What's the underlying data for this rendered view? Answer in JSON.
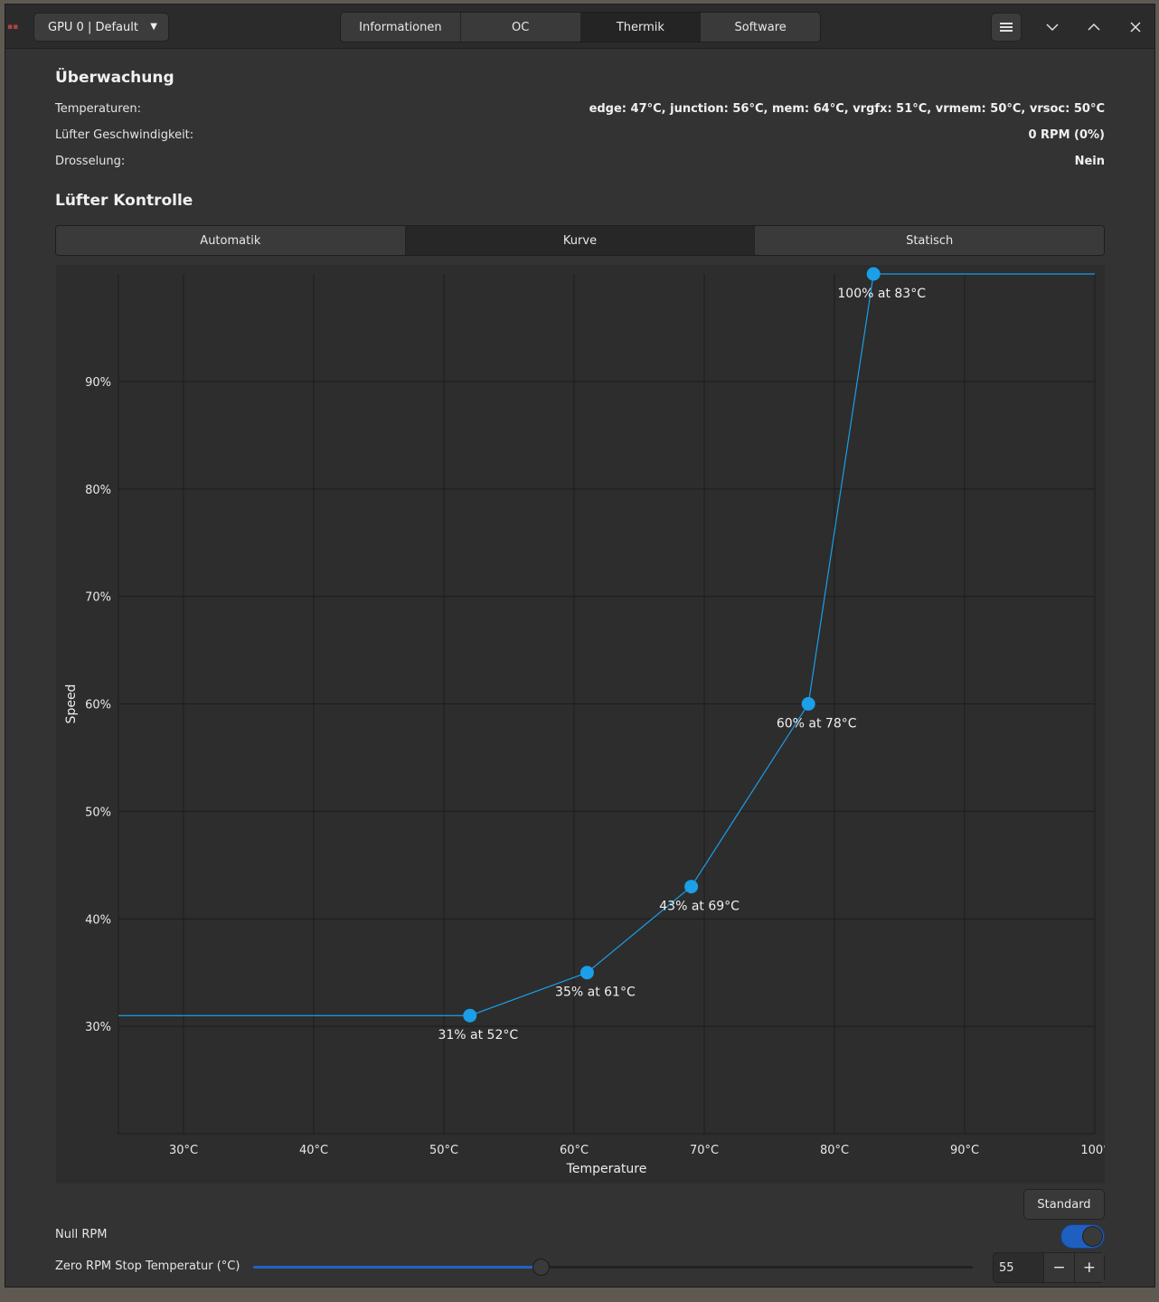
{
  "header": {
    "gpu_selector": "GPU 0 | Default",
    "tabs": [
      {
        "label": "Informationen",
        "active": false
      },
      {
        "label": "OC",
        "active": false
      },
      {
        "label": "Thermik",
        "active": true
      },
      {
        "label": "Software",
        "active": false
      }
    ],
    "icons": {
      "menu": "hamburger-icon",
      "minimize": "chevron-down-icon",
      "maximize": "chevron-up-icon",
      "close": "close-icon"
    }
  },
  "monitoring": {
    "title": "Überwachung",
    "rows": [
      {
        "label": "Temperaturen:",
        "value": "edge: 47°C, junction: 56°C, mem: 64°C, vrgfx: 51°C, vrmem: 50°C, vrsoc: 50°C"
      },
      {
        "label": "Lüfter Geschwindigkeit:",
        "value": "0 RPM (0%)"
      },
      {
        "label": "Drosselung:",
        "value": "Nein"
      }
    ]
  },
  "fan_control": {
    "title": "Lüfter Kontrolle",
    "modes": [
      {
        "label": "Automatik",
        "active": false
      },
      {
        "label": "Kurve",
        "active": true
      },
      {
        "label": "Statisch",
        "active": false
      }
    ],
    "standard_button": "Standard",
    "zero_rpm_label": "Null RPM",
    "zero_rpm_enabled": true,
    "stop_temp_label": "Zero RPM Stop Temperatur (°C)",
    "stop_temp_value": "55",
    "stop_temp_fraction": 0.4,
    "minus": "−",
    "plus": "+"
  },
  "colors": {
    "accent": "#1a9fe8",
    "toggle": "#1f5fbf",
    "grid": "#1d1d1d"
  },
  "chart_data": {
    "type": "line",
    "xlabel": "Temperature",
    "ylabel": "Speed",
    "xlim": [
      25,
      100
    ],
    "ylim": [
      20,
      100
    ],
    "x_ticks": [
      30,
      40,
      50,
      60,
      70,
      80,
      90,
      100
    ],
    "y_ticks": [
      30,
      40,
      50,
      60,
      70,
      80,
      90
    ],
    "x_tick_labels": [
      "30°C",
      "40°C",
      "50°C",
      "60°C",
      "70°C",
      "80°C",
      "90°C",
      "100°"
    ],
    "y_tick_labels": [
      "30%",
      "40%",
      "50%",
      "60%",
      "70%",
      "80%",
      "90%"
    ],
    "points": [
      {
        "x": 52,
        "y": 31,
        "label": "31% at 52°C"
      },
      {
        "x": 61,
        "y": 35,
        "label": "35% at 61°C"
      },
      {
        "x": 69,
        "y": 43,
        "label": "43% at 69°C"
      },
      {
        "x": 78,
        "y": 60,
        "label": "60% at 78°C"
      },
      {
        "x": 83,
        "y": 100,
        "label": "100% at 83°C"
      }
    ]
  }
}
